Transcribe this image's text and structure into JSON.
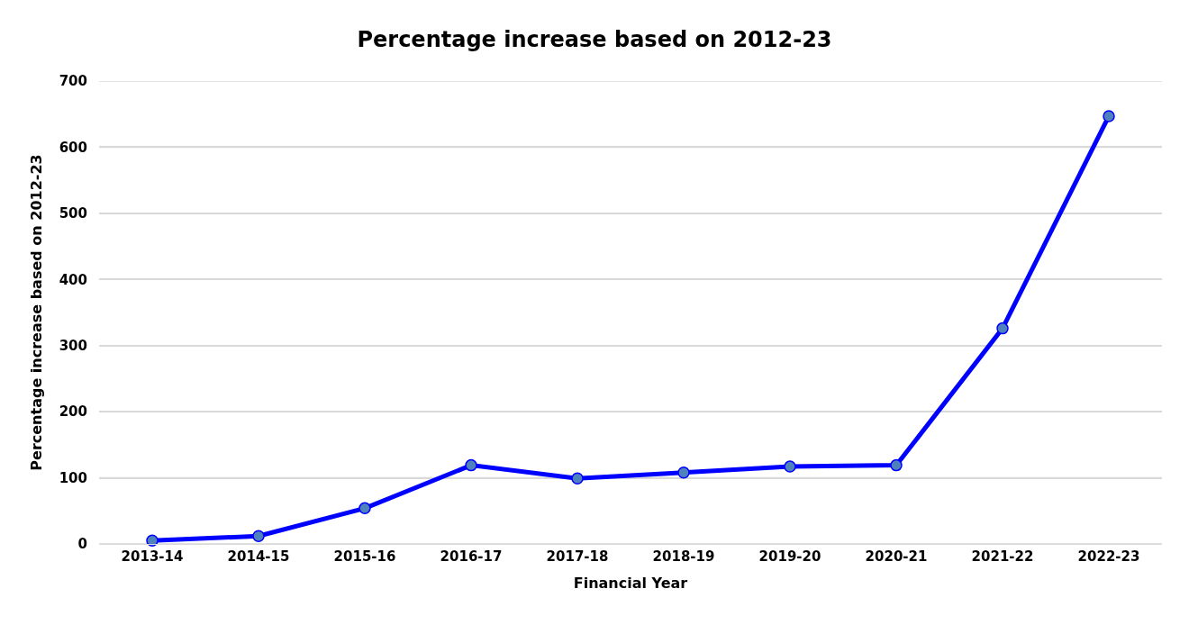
{
  "chart_data": {
    "type": "line",
    "title": "Percentage increase based on 2012-23",
    "xlabel": "Financial Year",
    "ylabel": "Percentage increase based on 2012-23",
    "categories": [
      "2013-14",
      "2014-15",
      "2015-16",
      "2016-17",
      "2017-18",
      "2018-19",
      "2019-20",
      "2020-21",
      "2021-22",
      "2022-23"
    ],
    "series": [
      {
        "color": "#0000ff",
        "values": [
          5,
          12,
          54,
          119,
          99,
          108,
          117,
          119,
          326,
          647
        ]
      }
    ],
    "ylim": [
      0,
      700
    ],
    "yticks": [
      0,
      100,
      200,
      300,
      400,
      500,
      600,
      700
    ],
    "grid": "y",
    "marker": "circle",
    "line_style": "solid"
  }
}
